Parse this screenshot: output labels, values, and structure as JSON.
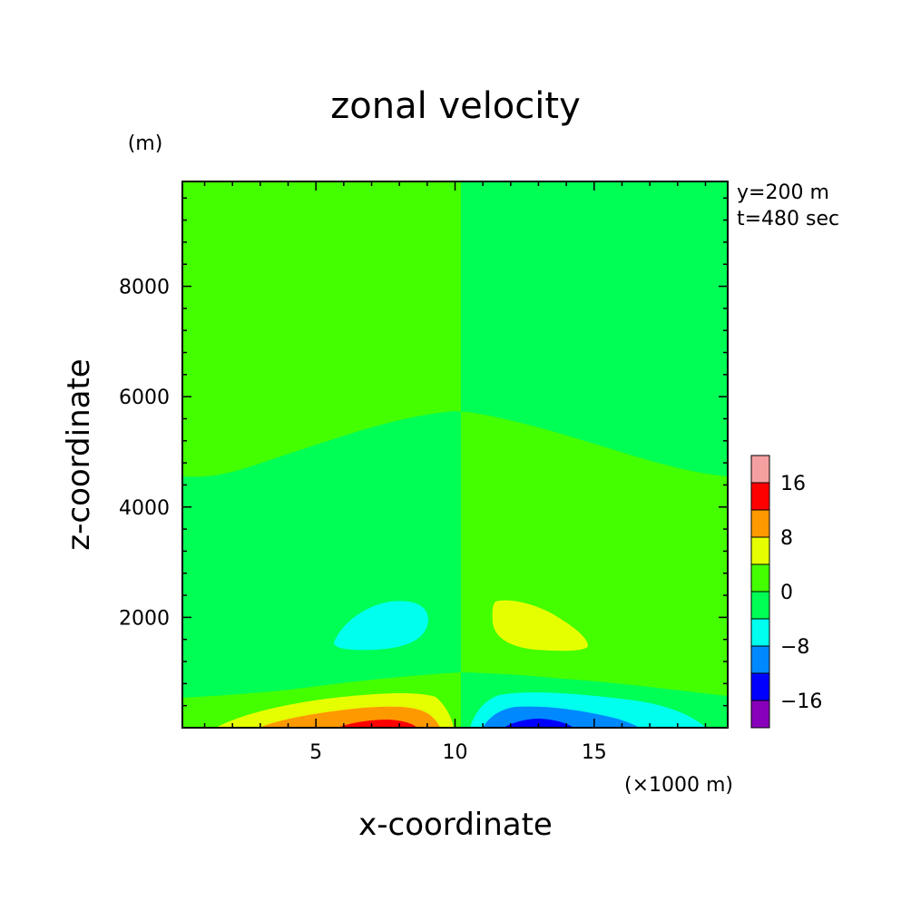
{
  "chart_data": {
    "type": "contour",
    "title": "zonal velocity",
    "xlabel": "x-coordinate",
    "ylabel": "z-coordinate",
    "x_unit": "(×1000 m)",
    "y_unit": "(m)",
    "annotations": [
      "y=200 m",
      "t=480 sec"
    ],
    "xlim": [
      0.2,
      19.8
    ],
    "ylim": [
      0,
      9900
    ],
    "x_ticks": [
      5,
      10,
      15
    ],
    "y_ticks": [
      2000,
      4000,
      6000,
      8000
    ],
    "grid": false,
    "legend": "colorbar-right",
    "colorbar": {
      "labels": [
        "16",
        "8",
        "0",
        "-8",
        "-16"
      ],
      "label_values": [
        16,
        8,
        0,
        -8,
        -16
      ],
      "levels_top_to_bottom": [
        {
          "range": [
            16,
            20
          ],
          "color": "#f5a0a0"
        },
        {
          "range": [
            12,
            16
          ],
          "color": "#ff0000"
        },
        {
          "range": [
            8,
            12
          ],
          "color": "#ff9900"
        },
        {
          "range": [
            4,
            8
          ],
          "color": "#e6ff00"
        },
        {
          "range": [
            0,
            4
          ],
          "color": "#44ff00"
        },
        {
          "range": [
            -4,
            0
          ],
          "color": "#00ff55"
        },
        {
          "range": [
            -8,
            -4
          ],
          "color": "#00ffee"
        },
        {
          "range": [
            -12,
            -8
          ],
          "color": "#0088ff"
        },
        {
          "range": [
            -16,
            -12
          ],
          "color": "#0000ff"
        },
        {
          "range": [
            -20,
            -16
          ],
          "color": "#8800bb"
        }
      ]
    },
    "regions": [
      {
        "level": "0..4",
        "color": "#44ff00",
        "x": [
          0.2,
          10.2
        ],
        "z": [
          0,
          9900
        ],
        "note": "left half background"
      },
      {
        "level": "-4..0",
        "color": "#00ff55",
        "x": [
          10.2,
          19.8
        ],
        "z": [
          0,
          9900
        ],
        "note": "right half background"
      },
      {
        "level": "-4..0",
        "color": "#00ff55",
        "note": "left half between ~600 m and boundary rising from ~4600 m at edge to ~5800 m at x=10"
      },
      {
        "level": "0..4",
        "color": "#44ff00",
        "note": "right half between ~1000 m and boundary falling from ~5800 m at x=10 to ~4600 m at edge"
      },
      {
        "level": "-8..-4",
        "color": "#00ffee",
        "x_center": 7.4,
        "z_center": 1900,
        "note": "left cell near 2000 m"
      },
      {
        "level": "4..8",
        "color": "#e6ff00",
        "x_center": 13.0,
        "z_center": 1900,
        "note": "right cell near 2000 m"
      },
      {
        "level": "4..16",
        "color": "#ff0000",
        "x_center": 7.6,
        "z_center": 0,
        "note": "near-surface positive lobe"
      },
      {
        "level": "-4..-16",
        "color": "#0000ff",
        "x_center": 12.9,
        "z_center": 0,
        "note": "near-surface negative lobe"
      }
    ]
  },
  "colors": {
    "frame": "#000000",
    "background": "#ffffff"
  }
}
